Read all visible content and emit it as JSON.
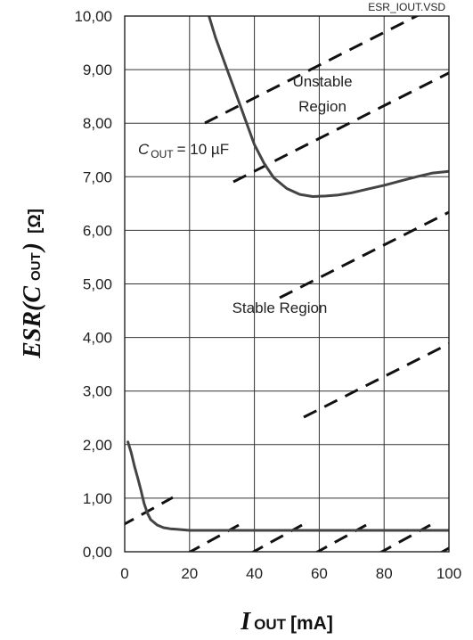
{
  "chart_data": {
    "type": "line",
    "file_label": "ESR_IOUT.VSD",
    "x_label": {
      "symbol": "I",
      "subscript": "OUT",
      "unit": "[mA]"
    },
    "y_label": {
      "symbol": "ESR(C",
      "subscript": "OUT",
      "close": ")",
      "unit": "[Ω]"
    },
    "xlim": [
      0,
      100
    ],
    "ylim": [
      0,
      10
    ],
    "x_ticks": [
      "0",
      "20",
      "40",
      "60",
      "80",
      "100"
    ],
    "x_tick_values": [
      0,
      20,
      40,
      60,
      80,
      100
    ],
    "y_ticks": [
      "0,00",
      "1,00",
      "2,00",
      "3,00",
      "4,00",
      "5,00",
      "6,00",
      "7,00",
      "8,00",
      "9,00",
      "10,00"
    ],
    "y_tick_values": [
      0,
      1,
      2,
      3,
      4,
      5,
      6,
      7,
      8,
      9,
      10
    ],
    "grid": true,
    "annotations": {
      "cout_symbol": "C",
      "cout_subscript": "OUT",
      "cout_value": "= 10 µF",
      "unstable_line1": "Unstable",
      "unstable_line2": "Region",
      "stable": "Stable Region"
    },
    "series": [
      {
        "role": "upper boundary",
        "x": [
          26,
          28,
          31,
          34,
          37,
          40,
          43,
          46,
          50,
          54,
          58,
          62,
          66,
          70,
          75,
          80,
          85,
          90,
          95,
          100
        ],
        "y": [
          10.0,
          9.6,
          9.1,
          8.6,
          8.1,
          7.6,
          7.25,
          6.98,
          6.78,
          6.67,
          6.63,
          6.64,
          6.66,
          6.7,
          6.77,
          6.84,
          6.92,
          7.0,
          7.07,
          7.1
        ]
      },
      {
        "role": "lower boundary",
        "x": [
          1,
          2,
          3,
          4,
          5,
          6,
          7,
          8,
          10,
          12,
          14,
          16,
          20,
          25,
          30,
          40,
          50,
          60,
          70,
          80,
          90,
          100
        ],
        "y": [
          2.05,
          1.85,
          1.6,
          1.38,
          1.15,
          0.9,
          0.72,
          0.6,
          0.5,
          0.45,
          0.43,
          0.42,
          0.4,
          0.4,
          0.4,
          0.4,
          0.4,
          0.4,
          0.4,
          0.4,
          0.4,
          0.4
        ]
      }
    ]
  }
}
